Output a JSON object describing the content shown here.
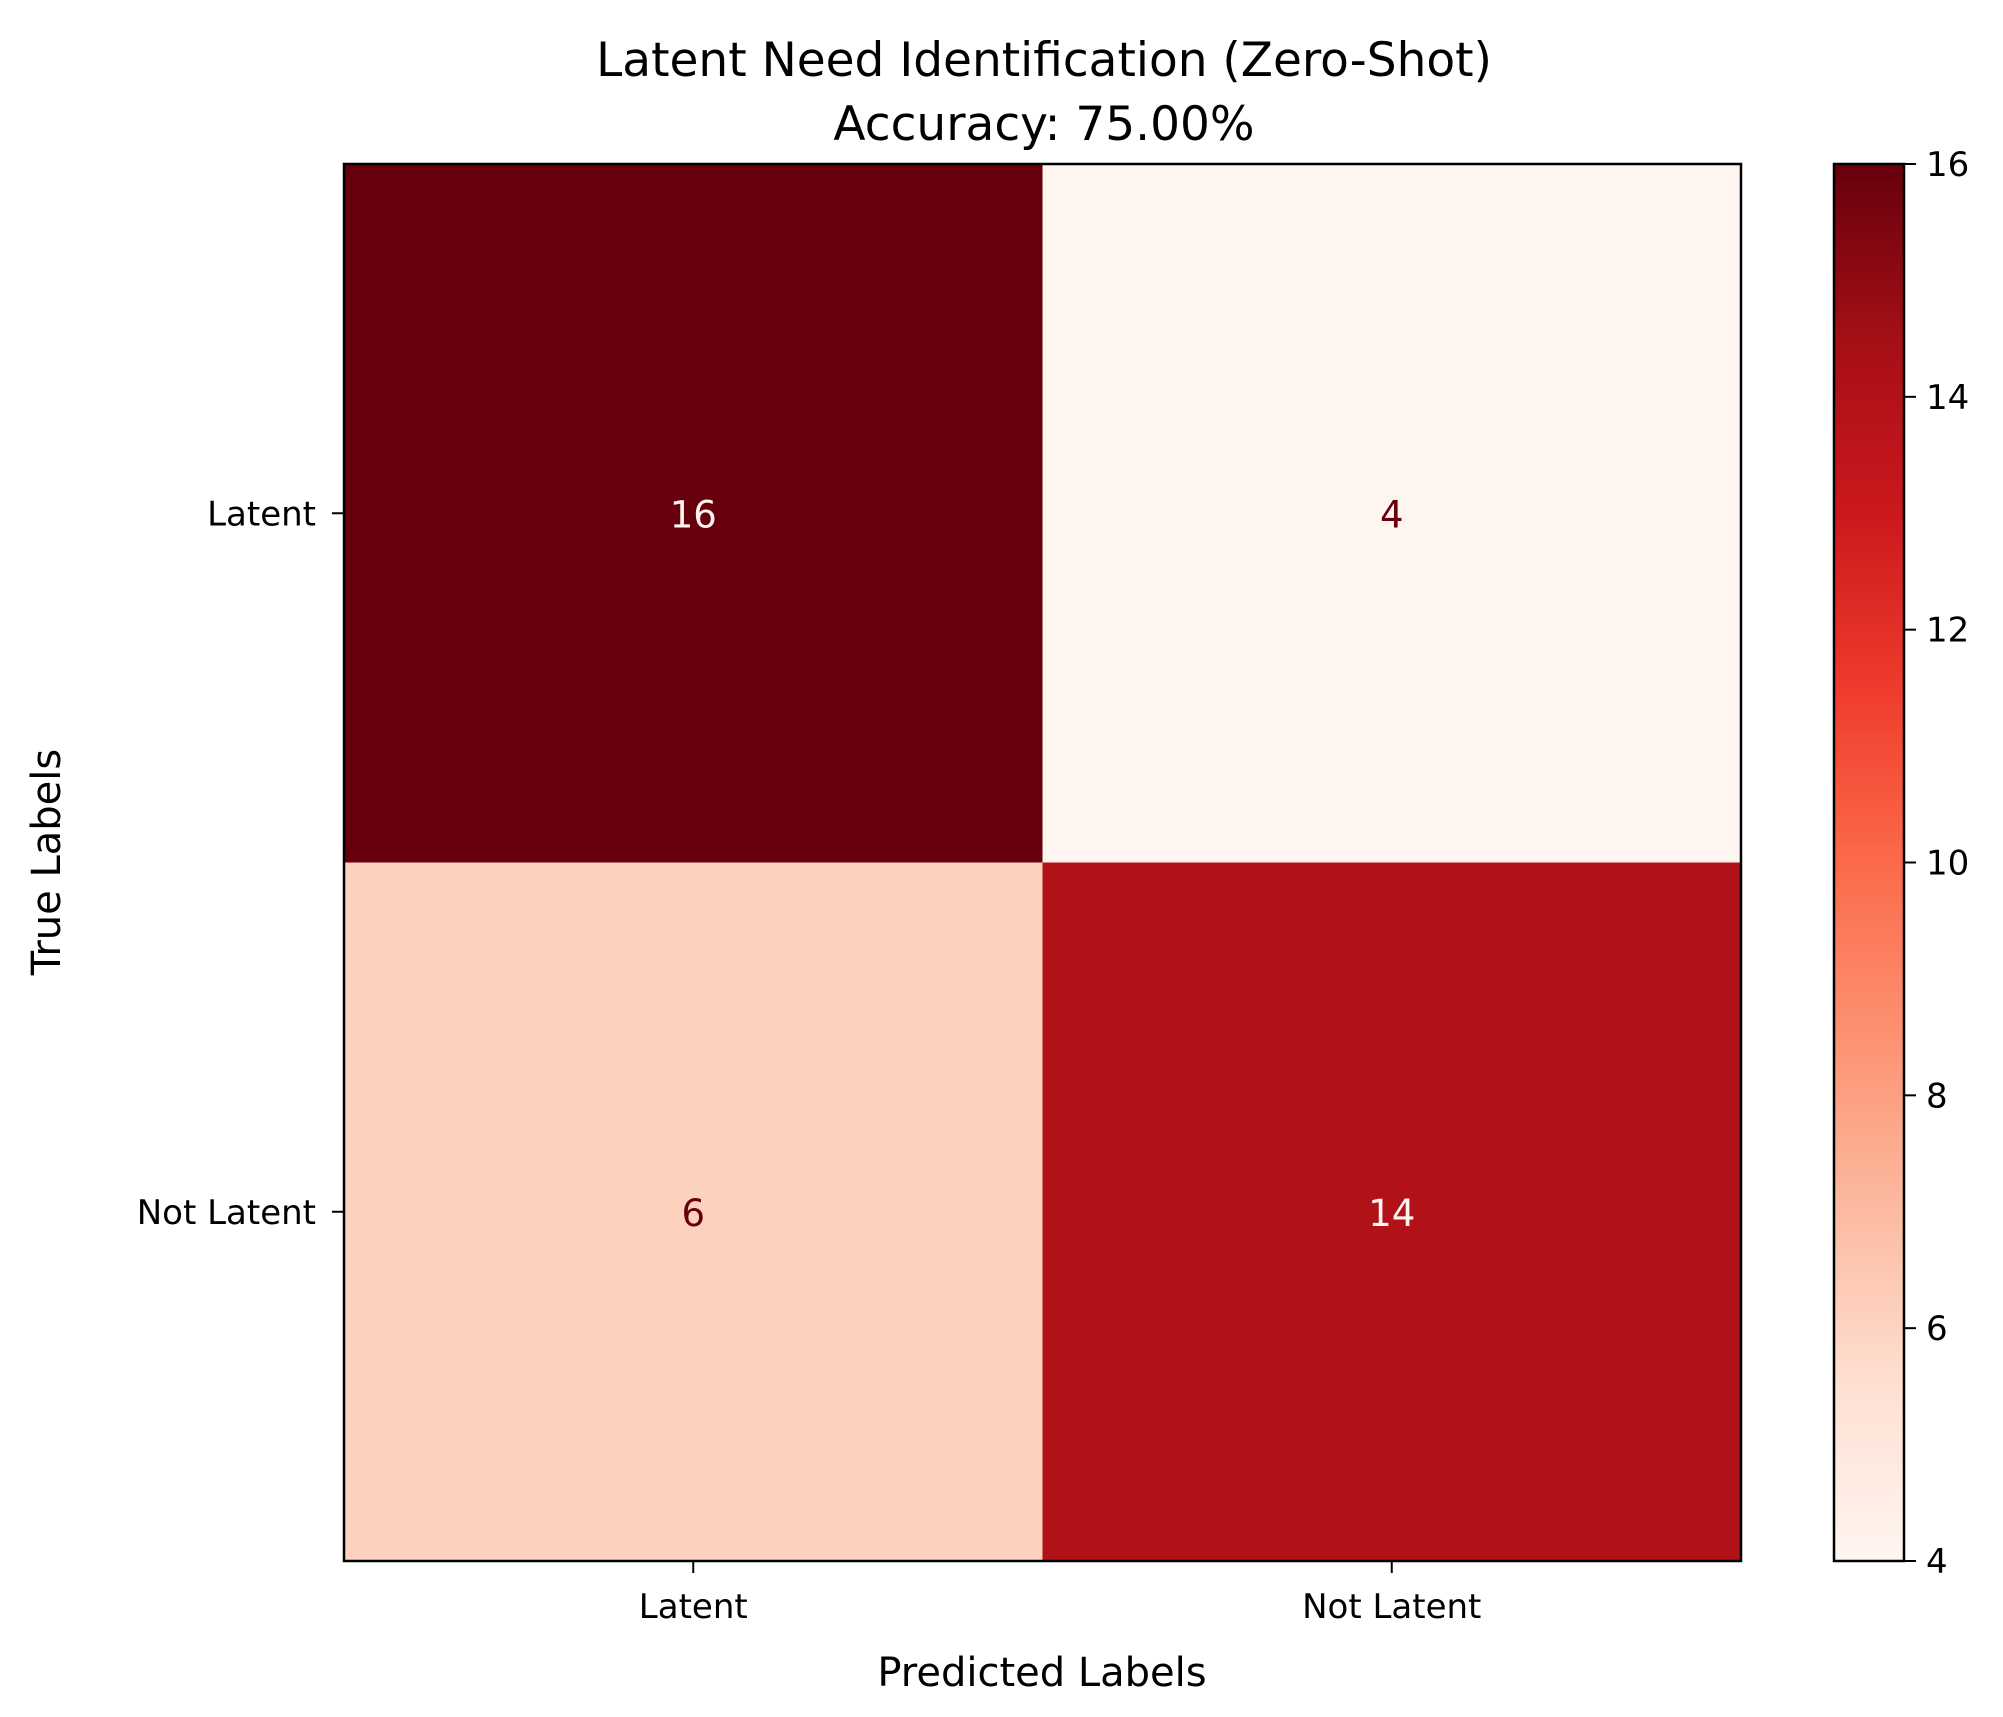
{
  "chart_data": {
    "type": "heatmap",
    "title": "Latent Need Identification (Zero-Shot)",
    "subtitle": "Accuracy: 75.00%",
    "xlabel": "Predicted Labels",
    "ylabel": "True Labels",
    "x_categories": [
      "Latent",
      "Not Latent"
    ],
    "y_categories": [
      "Latent",
      "Not Latent"
    ],
    "matrix": [
      [
        16,
        4
      ],
      [
        6,
        14
      ]
    ],
    "cell_colors": [
      [
        "#67000d",
        "#fff5f0"
      ],
      [
        "#fcd2bf",
        "#b11218"
      ]
    ],
    "cell_text_colors": [
      [
        "#fff5f0",
        "#67000d"
      ],
      [
        "#67000d",
        "#fff5f0"
      ]
    ],
    "colorbar": {
      "range": [
        4,
        16
      ],
      "ticks": [
        "4",
        "6",
        "8",
        "10",
        "12",
        "14",
        "16"
      ],
      "colormap": "Reds",
      "stops": [
        "#fff5f0",
        "#fee0d2",
        "#fcbba1",
        "#fc9272",
        "#fb6a4a",
        "#ef3b2c",
        "#cb181d",
        "#a50f15",
        "#67000d"
      ]
    }
  }
}
